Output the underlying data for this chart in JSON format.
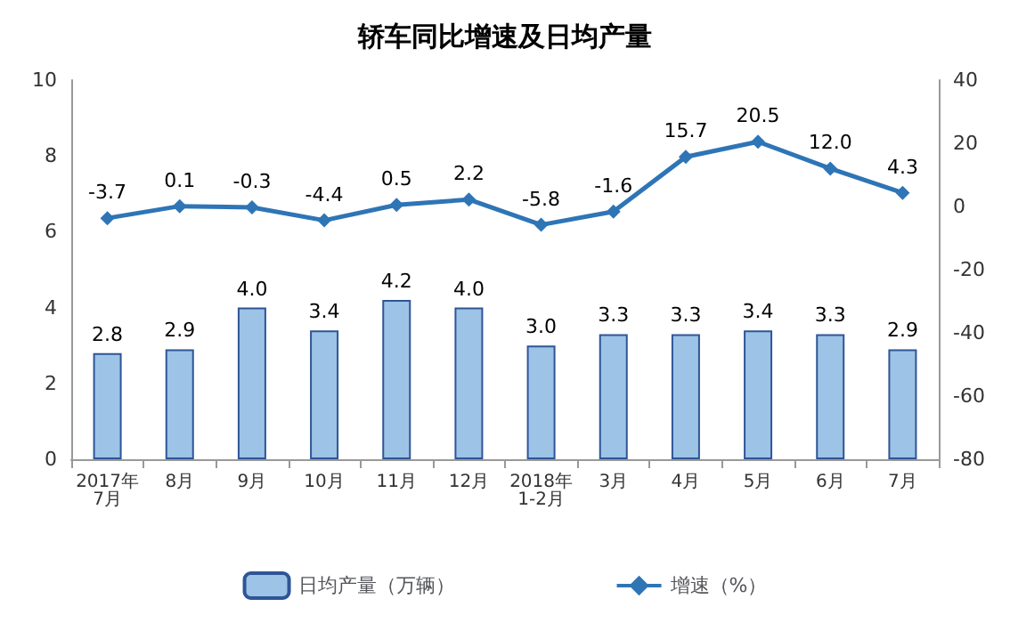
{
  "chart_data": {
    "type": "bar",
    "title": "轿车同比增速及日均产量",
    "categories": [
      "2017年\n7月",
      "8月",
      "9月",
      "10月",
      "11月",
      "12月",
      "2018年\n1-2月",
      "3月",
      "4月",
      "5月",
      "6月",
      "7月"
    ],
    "series": [
      {
        "name": "日均产量（万辆）",
        "color": "#9dc3e6",
        "values": [
          2.8,
          2.9,
          4.0,
          3.4,
          4.2,
          4.0,
          3.0,
          3.3,
          3.3,
          3.4,
          3.3,
          2.9
        ],
        "value_labels": [
          "2.8",
          "2.9",
          "4.0",
          "3.4",
          "4.2",
          "4.0",
          "3.0",
          "3.3",
          "3.3",
          "3.4",
          "3.3",
          "2.9"
        ]
      },
      {
        "name": "增速（%）",
        "type": "line",
        "axis": "y2",
        "color": "#2e75b6",
        "marker": "diamond",
        "values": [
          -3.7,
          0.1,
          -0.3,
          -4.4,
          0.5,
          2.2,
          -5.8,
          -1.6,
          15.7,
          20.5,
          12.0,
          4.3
        ],
        "value_labels": [
          "-3.7",
          "0.1",
          "-0.3",
          "-4.4",
          "0.5",
          "2.2",
          "-5.8",
          "-1.6",
          "15.7",
          "20.5",
          "12.0",
          "4.3"
        ]
      }
    ],
    "ylim": [
      0,
      10
    ],
    "yticks": [
      0,
      2,
      4,
      6,
      8,
      10
    ],
    "y2lim": [
      -80,
      40
    ],
    "y2ticks": [
      -80,
      -60,
      -40,
      -20,
      0,
      20,
      40
    ],
    "legend": "bottom",
    "grid": false
  }
}
